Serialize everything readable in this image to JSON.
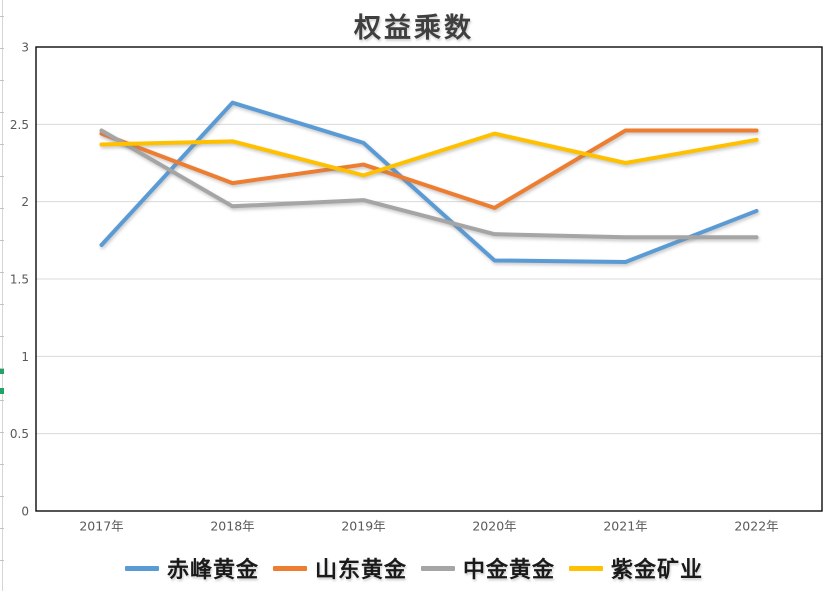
{
  "chart_data": {
    "type": "line",
    "title": "权益乘数",
    "categories": [
      "2017年",
      "2018年",
      "2019年",
      "2020年",
      "2021年",
      "2022年"
    ],
    "series": [
      {
        "name": "赤峰黄金",
        "color": "#5B9BD5",
        "values": [
          1.72,
          2.64,
          2.38,
          1.62,
          1.61,
          1.94
        ]
      },
      {
        "name": "山东黄金",
        "color": "#ED7D31",
        "values": [
          2.44,
          2.12,
          2.24,
          1.96,
          2.46,
          2.46
        ]
      },
      {
        "name": "中金黄金",
        "color": "#A5A5A5",
        "values": [
          2.46,
          1.97,
          2.01,
          1.79,
          1.77,
          1.77
        ]
      },
      {
        "name": "紫金矿业",
        "color": "#FFC000",
        "values": [
          2.37,
          2.39,
          2.17,
          2.44,
          2.25,
          2.4
        ]
      }
    ],
    "ylim": [
      0,
      3
    ],
    "yticks": [
      "0",
      "0.5",
      "1",
      "1.5",
      "2",
      "2.5",
      "3"
    ],
    "grid": "horizontal",
    "legend_position": "bottom",
    "gridline_color": "#D9D9D9",
    "axis_border_color": "#0a0a0a",
    "tick_label_color": "#595959"
  },
  "artifacts": {
    "edge_green_color": "#21a366"
  }
}
